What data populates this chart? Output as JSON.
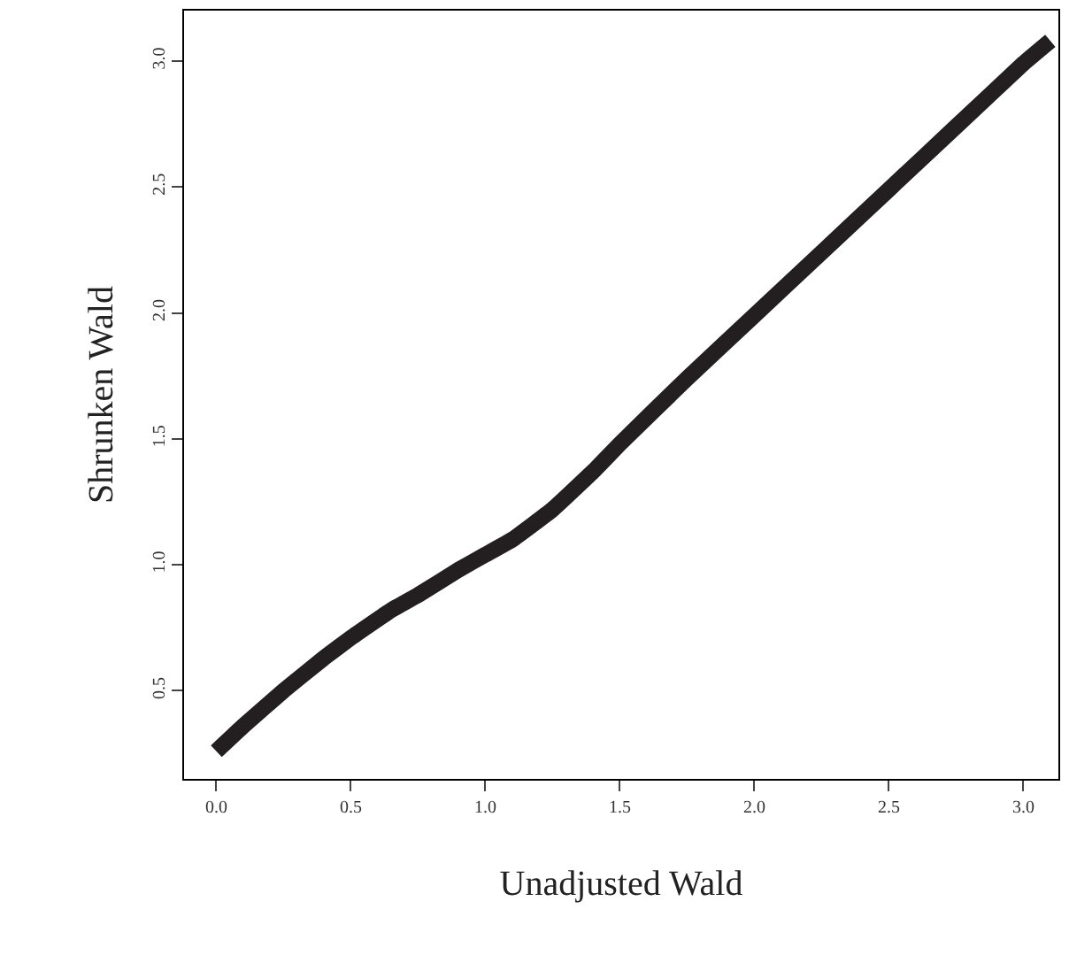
{
  "chart_data": {
    "type": "line",
    "xlabel": "Unadjusted Wald",
    "ylabel": "Shrunken Wald",
    "x": [
      0.0,
      0.1,
      0.25,
      0.4,
      0.5,
      0.65,
      0.75,
      0.9,
      1.0,
      1.1,
      1.25,
      1.4,
      1.5,
      1.75,
      2.0,
      2.25,
      2.5,
      2.75,
      3.0,
      3.1
    ],
    "series": [
      {
        "color": "#231f20",
        "values": [
          0.26,
          0.36,
          0.5,
          0.63,
          0.71,
          0.82,
          0.88,
          0.98,
          1.04,
          1.1,
          1.22,
          1.37,
          1.48,
          1.74,
          1.99,
          2.24,
          2.49,
          2.74,
          2.99,
          3.08
        ]
      }
    ],
    "xlim": [
      -0.12,
      3.13
    ],
    "ylim": [
      0.15,
      3.2
    ],
    "xticks": [
      {
        "value": 0,
        "label": "0.0"
      },
      0.5,
      {
        "value": 1,
        "label": "1.0"
      },
      1.5,
      {
        "value": 2,
        "label": "2.0"
      },
      2.5,
      {
        "value": 3,
        "label": "3.0"
      }
    ],
    "yticks": [
      0.5,
      {
        "value": 1,
        "label": "1.0"
      },
      1.5,
      {
        "value": 2,
        "label": "2.0"
      },
      2.5,
      {
        "value": 3,
        "label": "3.0"
      }
    ],
    "marker": "none",
    "line_style": "solid"
  }
}
